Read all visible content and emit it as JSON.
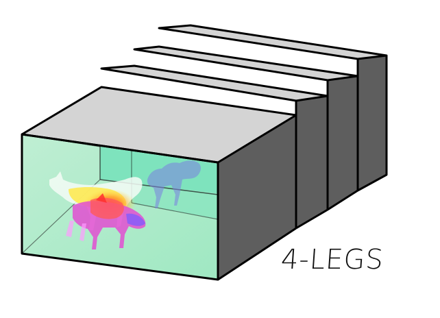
{
  "label": "4-LEGS",
  "colors": {
    "top": "#d4d4d4",
    "side": "#5e5e5e",
    "front_fill": "#b2f0cc",
    "inner_fill": "#7ee3bd",
    "outline": "#000000"
  }
}
